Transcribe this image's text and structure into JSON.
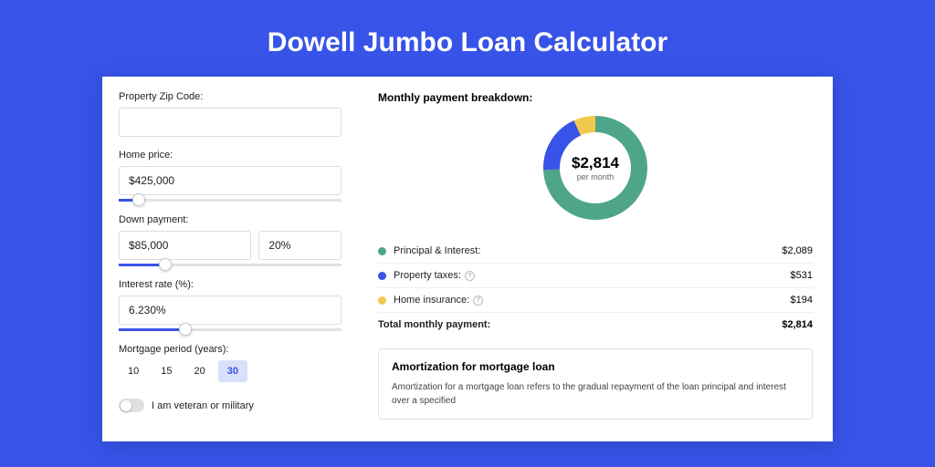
{
  "title": "Dowell Jumbo Loan Calculator",
  "form": {
    "zip": {
      "label": "Property Zip Code:",
      "value": ""
    },
    "home_price": {
      "label": "Home price:",
      "value": "$425,000",
      "slider_pct": 9
    },
    "down_payment": {
      "label": "Down payment:",
      "amount": "$85,000",
      "pct": "20%",
      "slider_pct": 21
    },
    "interest": {
      "label": "Interest rate (%):",
      "value": "6.230%",
      "slider_pct": 30
    },
    "period": {
      "label": "Mortgage period (years):",
      "options": [
        "10",
        "15",
        "20",
        "30"
      ],
      "active_index": 3
    },
    "veteran": {
      "label": "I am veteran or military",
      "on": false
    }
  },
  "breakdown": {
    "title": "Monthly payment breakdown:",
    "donut": {
      "amount": "$2,814",
      "sub": "per month",
      "segments": [
        {
          "color": "#4fa58a",
          "fraction": 0.742
        },
        {
          "color": "#3753e8",
          "fraction": 0.189
        },
        {
          "color": "#f2c94c",
          "fraction": 0.069
        }
      ],
      "stroke_width": 18
    },
    "legend": [
      {
        "color": "#4fa58a",
        "label": "Principal & Interest:",
        "value": "$2,089",
        "info": false
      },
      {
        "color": "#3753e8",
        "label": "Property taxes:",
        "value": "$531",
        "info": true
      },
      {
        "color": "#f2c94c",
        "label": "Home insurance:",
        "value": "$194",
        "info": true
      }
    ],
    "total": {
      "label": "Total monthly payment:",
      "value": "$2,814"
    }
  },
  "amortization": {
    "title": "Amortization for mortgage loan",
    "text": "Amortization for a mortgage loan refers to the gradual repayment of the loan principal and interest over a specified"
  }
}
